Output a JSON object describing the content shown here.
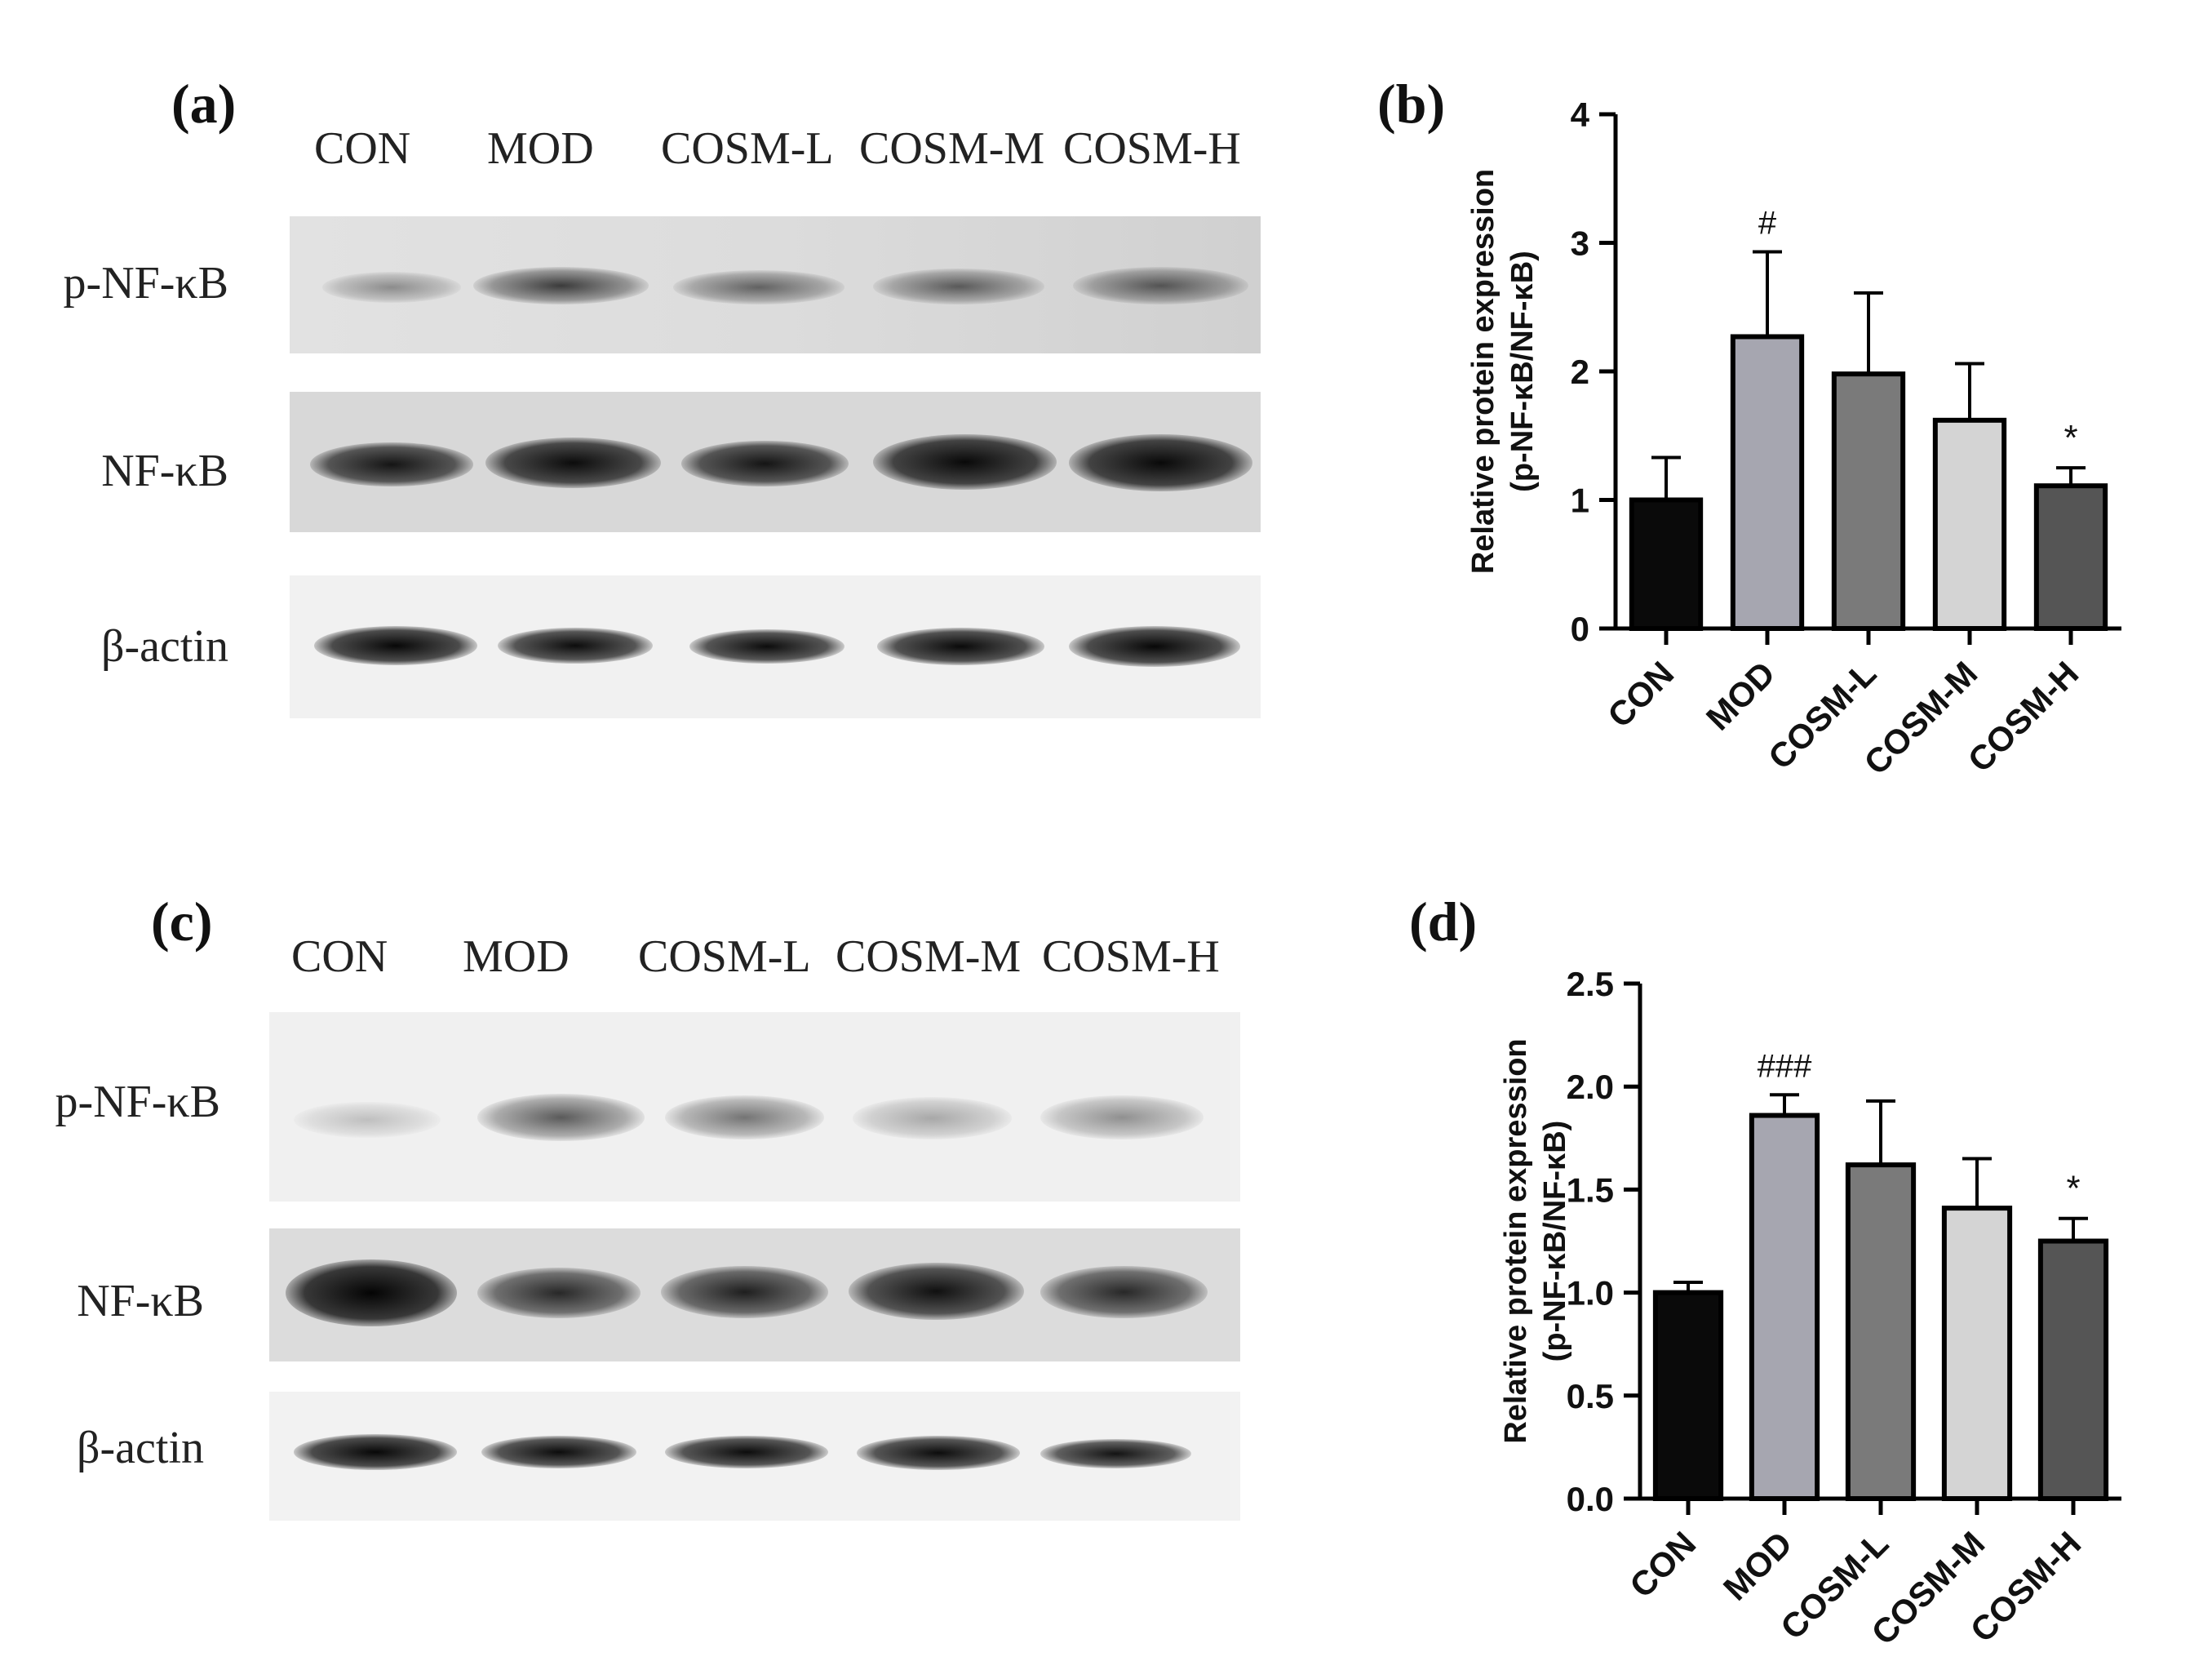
{
  "panels": {
    "a": "(a)",
    "b": "(b)",
    "c": "(c)",
    "d": "(d)"
  },
  "blot_a": {
    "lanes": [
      "CON",
      "MOD",
      "COSM-L",
      "COSM-M",
      "COSM-H"
    ],
    "rows": [
      "p-NF-κB",
      "NF-κB",
      "β-actin"
    ]
  },
  "blot_c": {
    "lanes": [
      "CON",
      "MOD",
      "COSM-L",
      "COSM-M",
      "COSM-H"
    ],
    "rows": [
      "p-NF-κB",
      "NF-κB",
      "β-actin"
    ]
  },
  "chart_data": [
    {
      "type": "bar",
      "panel": "b",
      "categories": [
        "CON",
        "MOD",
        "COSM-L",
        "COSM-M",
        "COSM-H"
      ],
      "values": [
        1.0,
        2.27,
        1.98,
        1.62,
        1.11
      ],
      "errors": [
        0.33,
        0.66,
        0.63,
        0.44,
        0.14
      ],
      "annotations": [
        "",
        "#",
        "",
        "",
        "*"
      ],
      "ylabel": "Relative protein expression\n(p-NF-κB/NF-κB)",
      "ylim": [
        0,
        4
      ],
      "yticks": [
        "0",
        "1",
        "2",
        "3",
        "4"
      ],
      "colors": [
        "#0a0a0a",
        "#a6a6b0",
        "#7a7a7a",
        "#d4d4d4",
        "#555555"
      ]
    },
    {
      "type": "bar",
      "panel": "d",
      "categories": [
        "CON",
        "MOD",
        "COSM-L",
        "COSM-M",
        "COSM-H"
      ],
      "values": [
        1.0,
        1.86,
        1.62,
        1.41,
        1.25
      ],
      "errors": [
        0.05,
        0.1,
        0.31,
        0.24,
        0.11
      ],
      "annotations": [
        "",
        "###",
        "",
        "",
        "*"
      ],
      "ylabel": "Relative protein expression\n(p-NF-κB/NF-κB)",
      "ylim": [
        0,
        2.5
      ],
      "yticks": [
        "0.0",
        "0.5",
        "1.0",
        "1.5",
        "2.0",
        "2.5"
      ],
      "colors": [
        "#0a0a0a",
        "#a6a6b0",
        "#7a7a7a",
        "#d4d4d4",
        "#555555"
      ]
    }
  ]
}
